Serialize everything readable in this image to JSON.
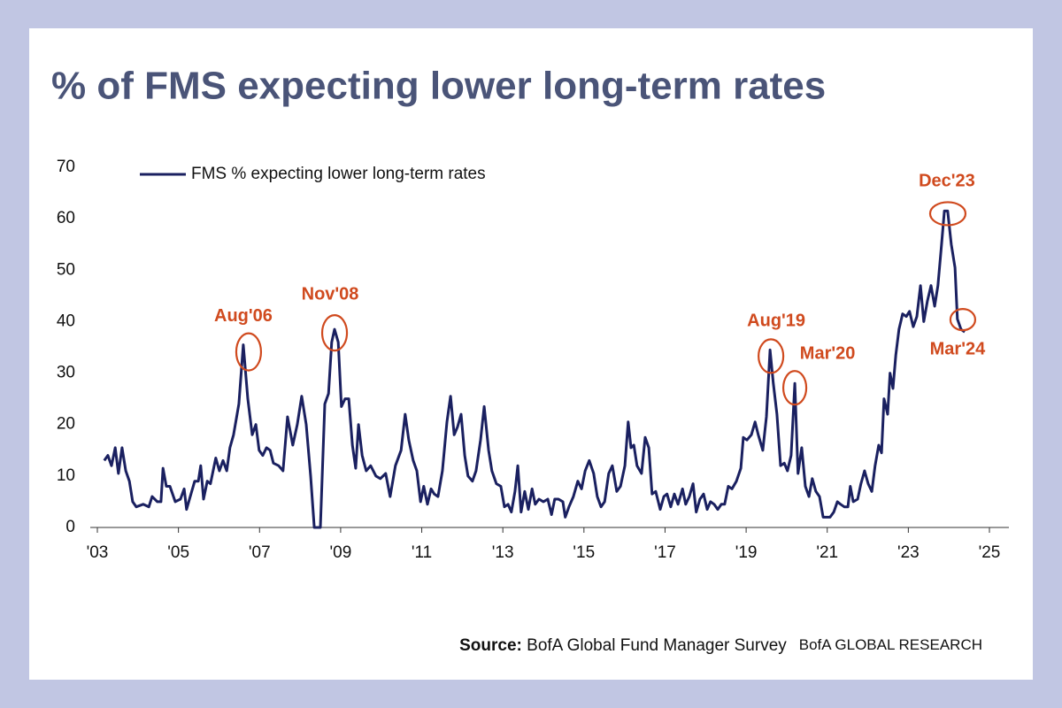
{
  "chart_data": {
    "type": "line",
    "title": "% of FMS expecting lower long-term rates",
    "source_label": "Source:",
    "source": "BofA Global Fund Manager Survey",
    "brand": "BofA GLOBAL RESEARCH",
    "xlim": [
      2003,
      2025
    ],
    "xticks": [
      {
        "value": 2003,
        "label": "'03"
      },
      {
        "value": 2005,
        "label": "'05"
      },
      {
        "value": 2007,
        "label": "'07"
      },
      {
        "value": 2009,
        "label": "'09"
      },
      {
        "value": 2011,
        "label": "'11"
      },
      {
        "value": 2013,
        "label": "'13"
      },
      {
        "value": 2015,
        "label": "'15"
      },
      {
        "value": 2017,
        "label": "'17"
      },
      {
        "value": 2019,
        "label": "'19"
      },
      {
        "value": 2021,
        "label": "'21"
      },
      {
        "value": 2023,
        "label": "'23"
      },
      {
        "value": 2025,
        "label": "'25"
      }
    ],
    "ylim": [
      0,
      70
    ],
    "yticks": [
      0,
      10,
      20,
      30,
      40,
      50,
      60,
      70
    ],
    "grid": false,
    "x": [
      2003.17,
      2003.26,
      2003.35,
      2003.44,
      2003.52,
      2003.61,
      2003.7,
      2003.79,
      2003.87,
      2003.96,
      2004.13,
      2004.27,
      2004.35,
      2004.48,
      2004.57,
      2004.62,
      2004.7,
      2004.79,
      2004.92,
      2005.05,
      2005.14,
      2005.2,
      2005.31,
      2005.4,
      2005.49,
      2005.55,
      2005.62,
      2005.71,
      2005.79,
      2005.92,
      2006.01,
      2006.1,
      2006.19,
      2006.27,
      2006.36,
      2006.49,
      2006.6,
      2006.71,
      2006.82,
      2006.91,
      2006.99,
      2007.08,
      2007.17,
      2007.26,
      2007.34,
      2007.47,
      2007.58,
      2007.69,
      2007.82,
      2007.93,
      2008.04,
      2008.15,
      2008.26,
      2008.35,
      2008.5,
      2008.61,
      2008.7,
      2008.78,
      2008.85,
      2008.94,
      2009.02,
      2009.11,
      2009.2,
      2009.29,
      2009.37,
      2009.44,
      2009.53,
      2009.63,
      2009.74,
      2009.87,
      2009.98,
      2010.11,
      2010.22,
      2010.35,
      2010.49,
      2010.59,
      2010.68,
      2010.79,
      2010.88,
      2010.97,
      2011.05,
      2011.14,
      2011.23,
      2011.31,
      2011.4,
      2011.51,
      2011.62,
      2011.71,
      2011.8,
      2011.88,
      2011.97,
      2012.06,
      2012.14,
      2012.25,
      2012.34,
      2012.45,
      2012.54,
      2012.65,
      2012.73,
      2012.84,
      2012.95,
      2013.04,
      2013.13,
      2013.21,
      2013.3,
      2013.37,
      2013.45,
      2013.54,
      2013.63,
      2013.72,
      2013.8,
      2013.89,
      2014.0,
      2014.11,
      2014.2,
      2014.28,
      2014.37,
      2014.48,
      2014.54,
      2014.63,
      2014.74,
      2014.85,
      2014.94,
      2015.03,
      2015.13,
      2015.24,
      2015.33,
      2015.42,
      2015.51,
      2015.61,
      2015.7,
      2015.81,
      2015.9,
      2016.01,
      2016.09,
      2016.16,
      2016.23,
      2016.31,
      2016.42,
      2016.51,
      2016.6,
      2016.68,
      2016.77,
      2016.88,
      2016.97,
      2017.05,
      2017.14,
      2017.23,
      2017.32,
      2017.43,
      2017.51,
      2017.6,
      2017.69,
      2017.77,
      2017.86,
      2017.95,
      2018.04,
      2018.12,
      2018.21,
      2018.3,
      2018.39,
      2018.47,
      2018.56,
      2018.65,
      2018.76,
      2018.87,
      2018.93,
      2019.02,
      2019.13,
      2019.22,
      2019.3,
      2019.41,
      2019.5,
      2019.59,
      2019.67,
      2019.76,
      2019.85,
      2019.94,
      2020.02,
      2020.11,
      2020.2,
      2020.28,
      2020.37,
      2020.46,
      2020.55,
      2020.63,
      2020.72,
      2020.81,
      2020.9,
      2020.98,
      2021.07,
      2021.16,
      2021.25,
      2021.33,
      2021.42,
      2021.51,
      2021.57,
      2021.64,
      2021.75,
      2021.83,
      2021.92,
      2022.01,
      2022.1,
      2022.18,
      2022.27,
      2022.34,
      2022.4,
      2022.49,
      2022.55,
      2022.62,
      2022.69,
      2022.77,
      2022.86,
      2022.95,
      2023.03,
      2023.12,
      2023.21,
      2023.3,
      2023.38,
      2023.47,
      2023.56,
      2023.65,
      2023.73,
      2023.82,
      2023.89,
      2023.97,
      2024.06,
      2024.15,
      2024.21,
      2024.3,
      2024.39
    ],
    "series": [
      {
        "name": "FMS % expecting lower long-term rates",
        "color": "#1a2060",
        "values": [
          13,
          14,
          12,
          15.5,
          10.5,
          15.5,
          11,
          9,
          5,
          4,
          4.5,
          4,
          6,
          5,
          5,
          11.5,
          8,
          8,
          5,
          5.5,
          7.5,
          3.5,
          6.5,
          9,
          9,
          12,
          5.5,
          9,
          8.5,
          13.5,
          11,
          13,
          11,
          15.5,
          18,
          24,
          35.5,
          25,
          18,
          20,
          15,
          14,
          15.5,
          15,
          12.5,
          12,
          11,
          21.5,
          16,
          20,
          25.5,
          20,
          10,
          0,
          0,
          24,
          26,
          36,
          38.5,
          36,
          23.5,
          25,
          25,
          16,
          11.5,
          20,
          14,
          11,
          12,
          10,
          9.5,
          10.5,
          6,
          12,
          15,
          22,
          17,
          13,
          11,
          5,
          8,
          4.5,
          7.5,
          6.5,
          6,
          11,
          20.5,
          25.5,
          18,
          19.5,
          22,
          14,
          10,
          9,
          11,
          17,
          23.5,
          15,
          11,
          8.5,
          8,
          4,
          4.5,
          3,
          7,
          12,
          3,
          7,
          3.5,
          7.5,
          4.5,
          5.5,
          5,
          5.5,
          2.5,
          5.5,
          5.5,
          5,
          2,
          4,
          6,
          9,
          7.5,
          11,
          13,
          10.5,
          6,
          4,
          5,
          10.5,
          12,
          7,
          8,
          12,
          20.5,
          15.5,
          16,
          12,
          10.5,
          17.5,
          15.5,
          6.5,
          7,
          3.5,
          6,
          6.5,
          4,
          6.5,
          4.5,
          7.5,
          4.5,
          6,
          8.5,
          3,
          5.5,
          6.5,
          3.5,
          5,
          4.5,
          3.5,
          4.5,
          4.5,
          8,
          7.5,
          9,
          11.5,
          17.5,
          17,
          18,
          20.5,
          18,
          15,
          21.5,
          34.5,
          28,
          22,
          12,
          12.5,
          11,
          14,
          28,
          10.5,
          15.5,
          8,
          6,
          9.5,
          7,
          6,
          2,
          2,
          2,
          3,
          5,
          4.5,
          4,
          4,
          8,
          5,
          5.5,
          8.5,
          11,
          8.5,
          7,
          12,
          16,
          14.5,
          25,
          22,
          30,
          27,
          33.5,
          38.5,
          41.5,
          41,
          42,
          39,
          41,
          47,
          40,
          44,
          47,
          43,
          47,
          55,
          61.5,
          61.5,
          55,
          50.5,
          40.5,
          38.5,
          38
        ]
      }
    ],
    "annotations": [
      {
        "text": "Aug'06",
        "x": 2006.6,
        "y": 35.5
      },
      {
        "text": "Nov'08",
        "x": 2008.85,
        "y": 38.5
      },
      {
        "text": "Aug'19",
        "x": 2019.59,
        "y": 34.5
      },
      {
        "text": "Mar'20",
        "x": 2020.2,
        "y": 28
      },
      {
        "text": "Dec'23",
        "x": 2023.93,
        "y": 61.5
      },
      {
        "text": "Mar'24",
        "x": 2024.3,
        "y": 38.5
      }
    ]
  }
}
